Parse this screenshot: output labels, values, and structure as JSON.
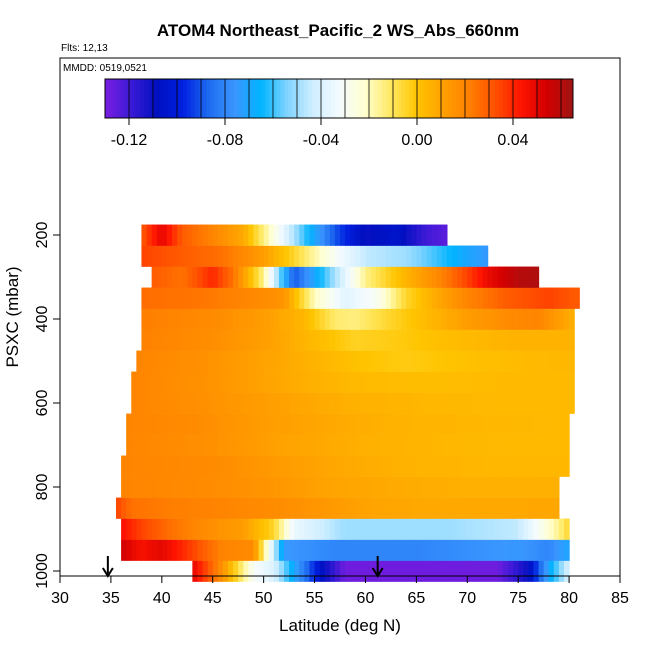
{
  "chart_data": {
    "type": "heatmap",
    "title": "ATOM4 Northeast_Pacific_2 WS_Abs_660nm",
    "flights_label": "Flts: 12,13",
    "dates_label": "MMDD: 0519,0521",
    "xlabel": "Latitude (deg N)",
    "ylabel": "PSXC (mbar)",
    "xlim": [
      30,
      85
    ],
    "ylim": [
      1000,
      100
    ],
    "x_ticks": [
      30,
      35,
      40,
      45,
      50,
      55,
      60,
      65,
      70,
      75,
      80,
      85
    ],
    "y_ticks": [
      200,
      400,
      600,
      800,
      1000
    ],
    "colorbar": {
      "range": [
        -0.13,
        0.065
      ],
      "ticks": [
        -0.12,
        -0.08,
        -0.04,
        0.0,
        0.04
      ],
      "tick_labels": [
        "-0.12",
        "-0.08",
        "-0.04",
        "0.00",
        "0.04"
      ],
      "colors": [
        "#7a1ee0",
        "#3a1ad6",
        "#0010c0",
        "#0020e0",
        "#1e6cf0",
        "#3a96ff",
        "#00b4ff",
        "#7fd4ff",
        "#cfeeff",
        "#f4fbff",
        "#ffffd0",
        "#ffe860",
        "#ffc400",
        "#ffa000",
        "#ff8000",
        "#ff5000",
        "#ff1400",
        "#d20000",
        "#a01414"
      ]
    },
    "markers": [
      34.7,
      61.2
    ],
    "bins": [
      {
        "p": 1000,
        "x0": 43,
        "x1": 80,
        "pts": [
          [
            43,
            0.05
          ],
          [
            46,
            0.015
          ],
          [
            49,
            -0.03
          ],
          [
            51,
            -0.04
          ],
          [
            53,
            -0.07
          ],
          [
            56,
            -0.11
          ],
          [
            58,
            -0.128
          ],
          [
            67,
            -0.128
          ],
          [
            73,
            -0.128
          ],
          [
            76,
            -0.11
          ],
          [
            78,
            -0.07
          ],
          [
            80,
            -0.04
          ]
        ]
      },
      {
        "p": 950,
        "x0": 36,
        "x1": 80,
        "pts": [
          [
            36,
            0.055
          ],
          [
            38,
            0.045
          ],
          [
            40,
            0.05
          ],
          [
            43,
            0.035
          ],
          [
            46,
            0.02
          ],
          [
            49,
            0.018
          ],
          [
            52,
            -0.075
          ],
          [
            57,
            -0.08
          ],
          [
            65,
            -0.08
          ],
          [
            75,
            -0.075
          ],
          [
            78,
            -0.08
          ],
          [
            80,
            -0.07
          ]
        ]
      },
      {
        "p": 900,
        "x0": 36,
        "x1": 80,
        "pts": [
          [
            36,
            0.045
          ],
          [
            38,
            0.035
          ],
          [
            41,
            0.025
          ],
          [
            44,
            0.018
          ],
          [
            48,
            0.012
          ],
          [
            51,
            -0.005
          ],
          [
            53,
            -0.035
          ],
          [
            58,
            -0.05
          ],
          [
            68,
            -0.05
          ],
          [
            75,
            -0.045
          ],
          [
            77,
            -0.03
          ],
          [
            79,
            -0.015
          ],
          [
            80,
            -0.005
          ]
        ]
      },
      {
        "p": 850,
        "x0": 35.5,
        "x1": 79,
        "pts": [
          [
            35.5,
            0.035
          ],
          [
            37,
            0.025
          ],
          [
            41,
            0.022
          ],
          [
            46,
            0.02
          ],
          [
            52,
            0.017
          ],
          [
            60,
            0.01
          ],
          [
            66,
            0.008
          ],
          [
            72,
            0.008
          ],
          [
            79,
            0.009
          ]
        ]
      },
      {
        "p": 800,
        "x0": 36,
        "x1": 79,
        "pts": [
          [
            36,
            0.02
          ],
          [
            44,
            0.018
          ],
          [
            50,
            0.015
          ],
          [
            56,
            0.01
          ],
          [
            62,
            0.008
          ],
          [
            70,
            0.006
          ],
          [
            79,
            0.006
          ]
        ]
      },
      {
        "p": 750,
        "x0": 36,
        "x1": 80,
        "pts": [
          [
            36,
            0.02
          ],
          [
            45,
            0.018
          ],
          [
            52,
            0.012
          ],
          [
            58,
            0.008
          ],
          [
            65,
            0.005
          ],
          [
            72,
            0.004
          ],
          [
            80,
            0.004
          ]
        ]
      },
      {
        "p": 700,
        "x0": 36.5,
        "x1": 80,
        "pts": [
          [
            36.5,
            0.02
          ],
          [
            45,
            0.016
          ],
          [
            52,
            0.01
          ],
          [
            60,
            0.006
          ],
          [
            68,
            0.004
          ],
          [
            75,
            0.003
          ],
          [
            80,
            0.003
          ]
        ]
      },
      {
        "p": 650,
        "x0": 36.5,
        "x1": 80,
        "pts": [
          [
            36.5,
            0.02
          ],
          [
            43,
            0.018
          ],
          [
            50,
            0.012
          ],
          [
            57,
            0.008
          ],
          [
            64,
            0.005
          ],
          [
            72,
            0.004
          ],
          [
            80,
            0.003
          ]
        ]
      },
      {
        "p": 600,
        "x0": 37,
        "x1": 80.5,
        "pts": [
          [
            37,
            0.02
          ],
          [
            44,
            0.016
          ],
          [
            51,
            0.011
          ],
          [
            58,
            0.006
          ],
          [
            66,
            0.004
          ],
          [
            74,
            0.003
          ],
          [
            80.5,
            0.003
          ]
        ]
      },
      {
        "p": 550,
        "x0": 37,
        "x1": 80.5,
        "pts": [
          [
            37,
            0.02
          ],
          [
            45,
            0.015
          ],
          [
            52,
            0.008
          ],
          [
            59,
            0.003
          ],
          [
            66,
            0.002
          ],
          [
            74,
            0.003
          ],
          [
            80.5,
            0.003
          ]
        ]
      },
      {
        "p": 500,
        "x0": 37.5,
        "x1": 80.5,
        "pts": [
          [
            37.5,
            0.02
          ],
          [
            44,
            0.016
          ],
          [
            50,
            0.01
          ],
          [
            56,
            0.004
          ],
          [
            60,
            0.0
          ],
          [
            64,
            -0.002
          ],
          [
            70,
            0.001
          ],
          [
            76,
            0.003
          ],
          [
            80.5,
            0.004
          ]
        ]
      },
      {
        "p": 450,
        "x0": 38,
        "x1": 80.5,
        "pts": [
          [
            38,
            0.021
          ],
          [
            45,
            0.017
          ],
          [
            51,
            0.01
          ],
          [
            55,
            0.003
          ],
          [
            59,
            -0.004
          ],
          [
            63,
            -0.002
          ],
          [
            68,
            0.002
          ],
          [
            74,
            0.005
          ],
          [
            80.5,
            0.005
          ]
        ]
      },
      {
        "p": 400,
        "x0": 38,
        "x1": 80.5,
        "pts": [
          [
            38,
            0.022
          ],
          [
            45,
            0.018
          ],
          [
            50,
            0.012
          ],
          [
            54,
            0.004
          ],
          [
            57,
            -0.012
          ],
          [
            59,
            -0.014
          ],
          [
            62,
            -0.006
          ],
          [
            66,
            0.003
          ],
          [
            70,
            0.012
          ],
          [
            74,
            0.018
          ],
          [
            77,
            0.02
          ],
          [
            80.5,
            0.006
          ]
        ]
      },
      {
        "p": 350,
        "x0": 38,
        "x1": 81,
        "pts": [
          [
            38,
            0.026
          ],
          [
            44,
            0.024
          ],
          [
            48,
            0.02
          ],
          [
            52,
            0.015
          ],
          [
            55,
            -0.02
          ],
          [
            58,
            -0.038
          ],
          [
            61,
            -0.03
          ],
          [
            64,
            -0.005
          ],
          [
            67,
            0.008
          ],
          [
            70,
            0.02
          ],
          [
            74,
            0.03
          ],
          [
            78,
            0.035
          ],
          [
            81,
            0.03
          ]
        ]
      },
      {
        "p": 300,
        "x0": 39,
        "x1": 77,
        "pts": [
          [
            39,
            0.03
          ],
          [
            42,
            0.025
          ],
          [
            45,
            0.04
          ],
          [
            47,
            0.025
          ],
          [
            50,
            -0.015
          ],
          [
            53,
            -0.09
          ],
          [
            56,
            -0.06
          ],
          [
            60,
            -0.015
          ],
          [
            64,
            0.005
          ],
          [
            67,
            0.018
          ],
          [
            70,
            0.035
          ],
          [
            72,
            0.048
          ],
          [
            75,
            0.06
          ],
          [
            77,
            0.062
          ]
        ]
      },
      {
        "p": 250,
        "x0": 38,
        "x1": 72,
        "pts": [
          [
            38,
            0.035
          ],
          [
            42,
            0.03
          ],
          [
            46,
            0.025
          ],
          [
            50,
            0.012
          ],
          [
            53,
            -0.005
          ],
          [
            57,
            -0.03
          ],
          [
            60,
            -0.045
          ],
          [
            64,
            -0.05
          ],
          [
            67,
            -0.06
          ],
          [
            70,
            -0.07
          ],
          [
            72,
            -0.075
          ]
        ]
      },
      {
        "p": 200,
        "x0": 38,
        "x1": 68,
        "pts": [
          [
            38,
            0.03
          ],
          [
            40,
            0.05
          ],
          [
            42,
            0.03
          ],
          [
            45,
            0.02
          ],
          [
            48,
            0.008
          ],
          [
            51,
            -0.025
          ],
          [
            54,
            -0.06
          ],
          [
            57,
            -0.09
          ],
          [
            60,
            -0.11
          ],
          [
            63,
            -0.105
          ],
          [
            66,
            -0.12
          ],
          [
            68,
            -0.125
          ]
        ]
      }
    ]
  }
}
